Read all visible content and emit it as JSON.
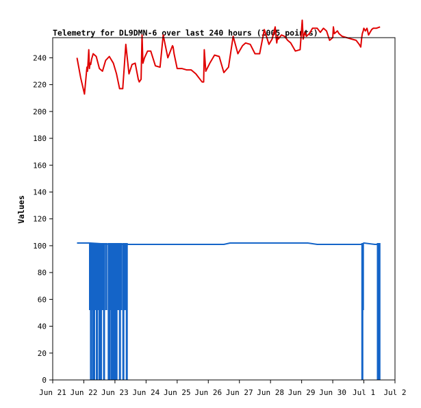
{
  "chart_data": {
    "type": "line",
    "title": "Telemetry for DL9DMN-6 over last 240 hours (1005 points)",
    "xlabel": "",
    "ylabel": "Values",
    "x_unit": "days since Jun 21 00:00",
    "xlim": [
      0,
      11
    ],
    "ylim": [
      0,
      255
    ],
    "x_ticks": [
      {
        "x": 0,
        "label": "Jun 21"
      },
      {
        "x": 1,
        "label": "Jun 22"
      },
      {
        "x": 2,
        "label": "Jun 23"
      },
      {
        "x": 3,
        "label": "Jun 24"
      },
      {
        "x": 4,
        "label": "Jun 25"
      },
      {
        "x": 5,
        "label": "Jun 26"
      },
      {
        "x": 6,
        "label": "Jun 27"
      },
      {
        "x": 7,
        "label": "Jun 28"
      },
      {
        "x": 8,
        "label": "Jun 29"
      },
      {
        "x": 9,
        "label": "Jun 30"
      },
      {
        "x": 10,
        "label": "Jul 1"
      },
      {
        "x": 11,
        "label": "Jul 2"
      }
    ],
    "y_ticks": [
      0,
      20,
      40,
      60,
      80,
      100,
      120,
      140,
      160,
      180,
      200,
      220,
      240
    ],
    "grid": false,
    "legend": "none",
    "series": [
      {
        "color": "#e00000",
        "x": [
          0.78,
          0.9,
          1.02,
          1.1,
          1.12,
          1.16,
          1.18,
          1.2,
          1.22,
          1.25,
          1.3,
          1.4,
          1.5,
          1.6,
          1.7,
          1.82,
          1.95,
          2.05,
          2.15,
          2.25,
          2.35,
          2.45,
          2.55,
          2.65,
          2.75,
          2.78,
          2.84,
          2.87,
          2.9,
          2.95,
          3.05,
          3.15,
          3.3,
          3.45,
          3.55,
          3.7,
          3.8,
          3.85,
          3.87,
          3.9,
          4.0,
          4.15,
          4.3,
          4.45,
          4.6,
          4.8,
          4.85,
          4.87,
          4.92,
          5.05,
          5.2,
          5.35,
          5.5,
          5.65,
          5.8,
          5.95,
          6.1,
          6.2,
          6.35,
          6.5,
          6.65,
          6.8,
          6.95,
          7.05,
          7.15,
          7.18,
          7.2,
          7.23,
          7.25,
          7.35,
          7.45,
          7.55,
          7.65,
          7.8,
          7.95,
          8.02,
          8.05,
          8.1,
          8.15,
          8.25,
          8.35,
          8.5,
          8.6,
          8.7,
          8.8,
          8.9,
          9.0,
          9.02,
          9.05,
          9.1,
          9.15,
          9.2,
          9.3,
          9.45,
          9.6,
          9.75,
          9.85,
          9.9,
          9.93,
          9.95,
          9.98,
          10.0,
          10.05,
          10.1,
          10.15,
          10.2,
          10.25,
          10.3,
          10.4,
          10.52
        ],
        "values": [
          240,
          225,
          213,
          233,
          230,
          246,
          232,
          236,
          235,
          239,
          243,
          241,
          232,
          230,
          238,
          241,
          236,
          228,
          217,
          217,
          250,
          228,
          235,
          236,
          224,
          222,
          224,
          257,
          236,
          240,
          245,
          245,
          234,
          233,
          257,
          240,
          246,
          249,
          248,
          243,
          232,
          232,
          231,
          231,
          228,
          222,
          222,
          246,
          230,
          236,
          242,
          241,
          229,
          233,
          256,
          243,
          249,
          251,
          250,
          243,
          243,
          261,
          250,
          254,
          263,
          255,
          251,
          256,
          254,
          257,
          256,
          253,
          251,
          245,
          246,
          268,
          254,
          259,
          256,
          258,
          262,
          262,
          259,
          262,
          260,
          253,
          255,
          263,
          258,
          259,
          260,
          258,
          256,
          255,
          254,
          253,
          250,
          248,
          255,
          258,
          260,
          262,
          260,
          262,
          257,
          259,
          261,
          262,
          262,
          263
        ]
      },
      {
        "color": "#1464c8",
        "x": [
          0.78,
          1.2,
          1.9,
          2.0,
          3.7,
          4.1,
          5.0,
          5.5,
          5.7,
          6.5,
          7.5,
          8.2,
          8.5,
          9.0,
          9.5,
          9.93,
          10.0,
          10.35,
          10.52
        ],
        "values": [
          102,
          102,
          101,
          101,
          101,
          101,
          101,
          101,
          102,
          102,
          102,
          102,
          101,
          101,
          101,
          101,
          102,
          101,
          101
        ],
        "dropouts": [
          {
            "x": 1.2,
            "y": 52
          },
          {
            "x": 1.23,
            "y": 0
          },
          {
            "x": 1.27,
            "y": 52
          },
          {
            "x": 1.3,
            "y": 0
          },
          {
            "x": 1.33,
            "y": 0
          },
          {
            "x": 1.37,
            "y": 52
          },
          {
            "x": 1.42,
            "y": 0
          },
          {
            "x": 1.47,
            "y": 52
          },
          {
            "x": 1.5,
            "y": 0
          },
          {
            "x": 1.55,
            "y": 0
          },
          {
            "x": 1.6,
            "y": 52
          },
          {
            "x": 1.65,
            "y": 0
          },
          {
            "x": 1.72,
            "y": 52
          },
          {
            "x": 1.8,
            "y": 0
          },
          {
            "x": 1.83,
            "y": 0
          },
          {
            "x": 1.87,
            "y": 52
          },
          {
            "x": 1.9,
            "y": 0
          },
          {
            "x": 1.94,
            "y": 0
          },
          {
            "x": 1.97,
            "y": 52
          },
          {
            "x": 2.0,
            "y": 0
          },
          {
            "x": 2.05,
            "y": 0
          },
          {
            "x": 2.1,
            "y": 52
          },
          {
            "x": 2.16,
            "y": 0
          },
          {
            "x": 2.2,
            "y": 52
          },
          {
            "x": 2.27,
            "y": 0
          },
          {
            "x": 2.33,
            "y": 52
          },
          {
            "x": 2.38,
            "y": 0
          },
          {
            "x": 9.95,
            "y": 0
          },
          {
            "x": 9.97,
            "y": 52
          },
          {
            "x": 10.45,
            "y": 0
          },
          {
            "x": 10.48,
            "y": 52
          },
          {
            "x": 10.5,
            "y": 0
          }
        ]
      }
    ]
  }
}
